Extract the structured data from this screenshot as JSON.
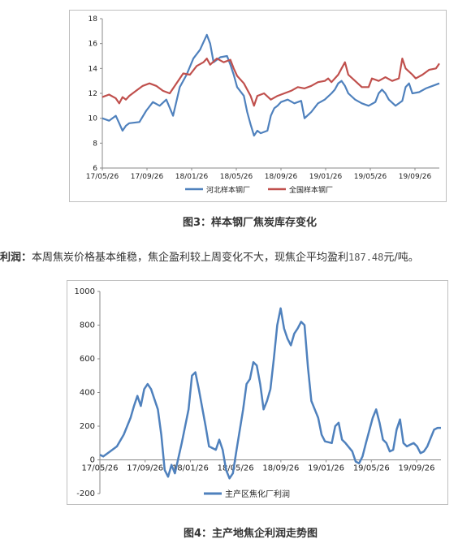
{
  "chart1": {
    "chart_data": {
      "type": "line",
      "title": "",
      "xlabel": "",
      "ylabel": "",
      "ylim": [
        6,
        18
      ],
      "yticks": [
        "6",
        "8",
        "10",
        "12",
        "14",
        "16",
        "18"
      ],
      "xticks": [
        "17/05/26",
        "17/09/26",
        "18/01/26",
        "18/05/26",
        "18/09/26",
        "19/01/26",
        "19/05/26",
        "19/09/26"
      ],
      "legend_position": "bottom",
      "series": [
        {
          "name": "河北样本钢厂",
          "color": "#4f81bd",
          "values": [
            [
              0,
              10
            ],
            [
              2,
              9.8
            ],
            [
              4,
              10.2
            ],
            [
              5,
              9.6
            ],
            [
              6,
              9.0
            ],
            [
              7,
              9.4
            ],
            [
              8,
              9.6
            ],
            [
              11,
              9.7
            ],
            [
              13,
              10.6
            ],
            [
              15,
              11.3
            ],
            [
              17,
              11.0
            ],
            [
              19,
              11.5
            ],
            [
              21,
              10.2
            ],
            [
              23,
              12.5
            ],
            [
              25,
              13.5
            ],
            [
              27,
              14.8
            ],
            [
              29,
              15.5
            ],
            [
              31,
              16.7
            ],
            [
              32,
              16.0
            ],
            [
              33,
              14.5
            ],
            [
              35,
              14.9
            ],
            [
              37,
              15.0
            ],
            [
              38,
              14.3
            ],
            [
              39,
              13.5
            ],
            [
              40,
              12.5
            ],
            [
              42,
              11.8
            ],
            [
              43,
              10.5
            ],
            [
              44,
              9.5
            ],
            [
              45,
              8.6
            ],
            [
              46,
              9.0
            ],
            [
              47,
              8.8
            ],
            [
              49,
              9.0
            ],
            [
              50,
              10.2
            ],
            [
              51,
              10.8
            ],
            [
              52,
              11.0
            ],
            [
              53,
              11.3
            ],
            [
              55,
              11.5
            ],
            [
              57,
              11.2
            ],
            [
              59,
              11.4
            ],
            [
              60,
              10.0
            ],
            [
              62,
              10.5
            ],
            [
              64,
              11.2
            ],
            [
              66,
              11.5
            ],
            [
              68,
              12.0
            ],
            [
              69,
              12.3
            ],
            [
              70,
              12.8
            ],
            [
              71,
              13.0
            ],
            [
              72,
              12.6
            ],
            [
              73,
              12.0
            ],
            [
              75,
              11.5
            ],
            [
              77,
              11.2
            ],
            [
              79,
              11.0
            ],
            [
              81,
              11.3
            ],
            [
              82,
              12.0
            ],
            [
              83,
              12.3
            ],
            [
              84,
              12.0
            ],
            [
              85,
              11.5
            ],
            [
              87,
              11.0
            ],
            [
              89,
              11.4
            ],
            [
              90,
              12.5
            ],
            [
              91,
              12.8
            ],
            [
              92,
              12.0
            ],
            [
              94,
              12.1
            ],
            [
              96,
              12.4
            ],
            [
              98,
              12.6
            ],
            [
              100,
              12.8
            ]
          ]
        },
        {
          "name": "全国样本钢厂",
          "color": "#c0504d",
          "values": [
            [
              0,
              11.7
            ],
            [
              2,
              11.9
            ],
            [
              4,
              11.6
            ],
            [
              5,
              11.2
            ],
            [
              6,
              11.7
            ],
            [
              7,
              11.5
            ],
            [
              8,
              11.8
            ],
            [
              10,
              12.2
            ],
            [
              12,
              12.6
            ],
            [
              14,
              12.8
            ],
            [
              16,
              12.6
            ],
            [
              18,
              12.2
            ],
            [
              20,
              12.0
            ],
            [
              22,
              12.8
            ],
            [
              24,
              13.6
            ],
            [
              26,
              13.5
            ],
            [
              28,
              14.2
            ],
            [
              30,
              14.5
            ],
            [
              31,
              14.8
            ],
            [
              32,
              14.3
            ],
            [
              34,
              14.8
            ],
            [
              36,
              14.5
            ],
            [
              38,
              14.7
            ],
            [
              39,
              14.0
            ],
            [
              40,
              13.4
            ],
            [
              42,
              12.8
            ],
            [
              44,
              11.8
            ],
            [
              45,
              11.0
            ],
            [
              46,
              11.8
            ],
            [
              48,
              12.0
            ],
            [
              50,
              11.5
            ],
            [
              52,
              11.8
            ],
            [
              54,
              12.0
            ],
            [
              56,
              12.2
            ],
            [
              58,
              12.5
            ],
            [
              60,
              12.4
            ],
            [
              62,
              12.6
            ],
            [
              64,
              12.9
            ],
            [
              66,
              13.0
            ],
            [
              67,
              13.2
            ],
            [
              68,
              12.9
            ],
            [
              70,
              13.5
            ],
            [
              71,
              14.0
            ],
            [
              72,
              14.5
            ],
            [
              73,
              13.5
            ],
            [
              75,
              13.0
            ],
            [
              77,
              12.5
            ],
            [
              79,
              12.5
            ],
            [
              80,
              13.2
            ],
            [
              82,
              13.0
            ],
            [
              84,
              13.3
            ],
            [
              86,
              13.0
            ],
            [
              88,
              13.2
            ],
            [
              89,
              14.8
            ],
            [
              90,
              14.0
            ],
            [
              92,
              13.5
            ],
            [
              93,
              13.2
            ],
            [
              95,
              13.5
            ],
            [
              97,
              13.9
            ],
            [
              99,
              14.0
            ],
            [
              100,
              14.4
            ]
          ]
        }
      ]
    }
  },
  "caption1": "图3：样本钢厂焦炭库存变化",
  "paragraph": {
    "label": "利润：",
    "text_before": "本周焦炭价格基本维稳，焦企盈利较上周变化不大，现焦企平均盈利",
    "number": "187.48",
    "text_after": "元/吨。"
  },
  "chart2": {
    "chart_data": {
      "type": "line",
      "title": "",
      "xlabel": "",
      "ylabel": "",
      "ylim": [
        -200,
        1000
      ],
      "yticks": [
        "-200",
        "0",
        "200",
        "400",
        "600",
        "800",
        "1000"
      ],
      "xticks": [
        "17/05/26",
        "17/09/26",
        "18/01/26",
        "18/05/26",
        "18/09/26",
        "19/01/26",
        "19/05/26",
        "19/09/26"
      ],
      "legend_position": "bottom-left",
      "series": [
        {
          "name": "主产区焦化厂利润",
          "color": "#4f81bd",
          "values": [
            [
              0,
              30
            ],
            [
              1,
              20
            ],
            [
              3,
              50
            ],
            [
              5,
              80
            ],
            [
              7,
              150
            ],
            [
              9,
              250
            ],
            [
              10,
              320
            ],
            [
              11,
              380
            ],
            [
              12,
              320
            ],
            [
              13,
              420
            ],
            [
              14,
              450
            ],
            [
              15,
              420
            ],
            [
              17,
              300
            ],
            [
              18,
              150
            ],
            [
              19,
              -60
            ],
            [
              20,
              -100
            ],
            [
              21,
              -30
            ],
            [
              22,
              -80
            ],
            [
              24,
              100
            ],
            [
              26,
              300
            ],
            [
              27,
              500
            ],
            [
              28,
              520
            ],
            [
              29,
              420
            ],
            [
              31,
              200
            ],
            [
              32,
              80
            ],
            [
              34,
              60
            ],
            [
              35,
              120
            ],
            [
              36,
              60
            ],
            [
              37,
              -60
            ],
            [
              38,
              -110
            ],
            [
              39,
              -80
            ],
            [
              40,
              50
            ],
            [
              42,
              300
            ],
            [
              43,
              450
            ],
            [
              44,
              480
            ],
            [
              45,
              580
            ],
            [
              46,
              560
            ],
            [
              47,
              450
            ],
            [
              48,
              300
            ],
            [
              49,
              350
            ],
            [
              50,
              420
            ],
            [
              51,
              600
            ],
            [
              52,
              800
            ],
            [
              53,
              900
            ],
            [
              54,
              780
            ],
            [
              55,
              720
            ],
            [
              56,
              680
            ],
            [
              57,
              750
            ],
            [
              58,
              780
            ],
            [
              59,
              820
            ],
            [
              60,
              800
            ],
            [
              61,
              550
            ],
            [
              62,
              350
            ],
            [
              63,
              300
            ],
            [
              64,
              250
            ],
            [
              65,
              150
            ],
            [
              66,
              110
            ],
            [
              68,
              100
            ],
            [
              69,
              200
            ],
            [
              70,
              220
            ],
            [
              71,
              120
            ],
            [
              72,
              100
            ],
            [
              74,
              50
            ],
            [
              75,
              -10
            ],
            [
              76,
              -20
            ],
            [
              77,
              20
            ],
            [
              78,
              100
            ],
            [
              80,
              250
            ],
            [
              81,
              300
            ],
            [
              82,
              220
            ],
            [
              83,
              120
            ],
            [
              84,
              100
            ],
            [
              85,
              50
            ],
            [
              86,
              60
            ],
            [
              87,
              180
            ],
            [
              88,
              240
            ],
            [
              89,
              100
            ],
            [
              90,
              80
            ],
            [
              91,
              90
            ],
            [
              92,
              100
            ],
            [
              93,
              80
            ],
            [
              94,
              40
            ],
            [
              95,
              50
            ],
            [
              96,
              80
            ],
            [
              97,
              130
            ],
            [
              98,
              180
            ],
            [
              99,
              190
            ],
            [
              100,
              190
            ]
          ]
        }
      ]
    }
  },
  "caption2": "图4：主产地焦企利润走势图"
}
